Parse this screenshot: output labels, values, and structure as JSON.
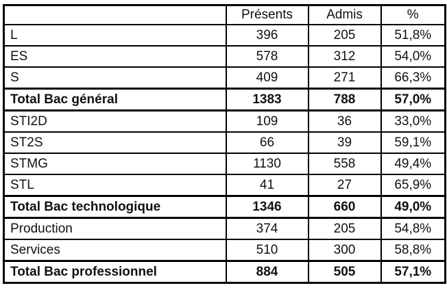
{
  "table": {
    "headers": {
      "label": "",
      "presents": "Présents",
      "admis": "Admis",
      "pct": "%"
    },
    "rows": [
      {
        "label": "L",
        "presents": "396",
        "admis": "205",
        "pct": "51,8%",
        "total": false
      },
      {
        "label": "ES",
        "presents": "578",
        "admis": "312",
        "pct": "54,0%",
        "total": false
      },
      {
        "label": "S",
        "presents": "409",
        "admis": "271",
        "pct": "66,3%",
        "total": false
      },
      {
        "label": "Total Bac général",
        "presents": "1383",
        "admis": "788",
        "pct": "57,0%",
        "total": true
      },
      {
        "label": "STI2D",
        "presents": "109",
        "admis": "36",
        "pct": "33,0%",
        "total": false
      },
      {
        "label": "ST2S",
        "presents": "66",
        "admis": "39",
        "pct": "59,1%",
        "total": false
      },
      {
        "label": "STMG",
        "presents": "1130",
        "admis": "558",
        "pct": "49,4%",
        "total": false
      },
      {
        "label": "STL",
        "presents": "41",
        "admis": "27",
        "pct": "65,9%",
        "total": false
      },
      {
        "label": "Total Bac technologique",
        "presents": "1346",
        "admis": "660",
        "pct": "49,0%",
        "total": true
      },
      {
        "label": "Production",
        "presents": "374",
        "admis": "205",
        "pct": "54,8%",
        "total": false
      },
      {
        "label": "Services",
        "presents": "510",
        "admis": "300",
        "pct": "58,8%",
        "total": false
      },
      {
        "label": "Total Bac professionnel",
        "presents": "884",
        "admis": "505",
        "pct": "57,1%",
        "total": true
      }
    ],
    "colors": {
      "border": "#000000",
      "text": "#111111",
      "background": "#ffffff"
    }
  },
  "chart_data": {
    "type": "table",
    "title": "",
    "columns": [
      "",
      "Présents",
      "Admis",
      "%"
    ],
    "rows": [
      [
        "L",
        396,
        205,
        "51,8%"
      ],
      [
        "ES",
        578,
        312,
        "54,0%"
      ],
      [
        "S",
        409,
        271,
        "66,3%"
      ],
      [
        "Total Bac général",
        1383,
        788,
        "57,0%"
      ],
      [
        "STI2D",
        109,
        36,
        "33,0%"
      ],
      [
        "ST2S",
        66,
        39,
        "59,1%"
      ],
      [
        "STMG",
        1130,
        558,
        "49,4%"
      ],
      [
        "STL",
        41,
        27,
        "65,9%"
      ],
      [
        "Total Bac technologique",
        1346,
        660,
        "49,0%"
      ],
      [
        "Production",
        374,
        205,
        "54,8%"
      ],
      [
        "Services",
        510,
        300,
        "58,8%"
      ],
      [
        "Total Bac professionnel",
        884,
        505,
        "57,1%"
      ]
    ],
    "bold_rows": [
      3,
      8,
      11
    ],
    "grid": true,
    "legend_position": "none"
  }
}
